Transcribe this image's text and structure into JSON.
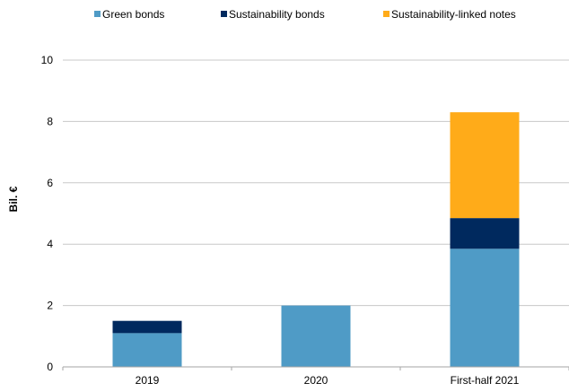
{
  "chart_data": {
    "type": "bar",
    "stacked": true,
    "categories": [
      "2019",
      "2020",
      "First-half 2021"
    ],
    "series": [
      {
        "name": "Green bonds",
        "values": [
          1.1,
          2.0,
          3.85
        ],
        "color": "#4f9bc6"
      },
      {
        "name": "Sustainability bonds",
        "values": [
          0.4,
          0.0,
          1.0
        ],
        "color": "#00295e"
      },
      {
        "name": "Sustainability-linked notes",
        "values": [
          0.0,
          0.0,
          3.45
        ],
        "color": "#ffab19"
      }
    ],
    "title": "",
    "xlabel": "",
    "ylabel": "Bil. €",
    "ylim": [
      0,
      10
    ],
    "yticks": [
      0,
      2,
      4,
      6,
      8,
      10
    ],
    "grid": true,
    "legend_position": "top"
  }
}
